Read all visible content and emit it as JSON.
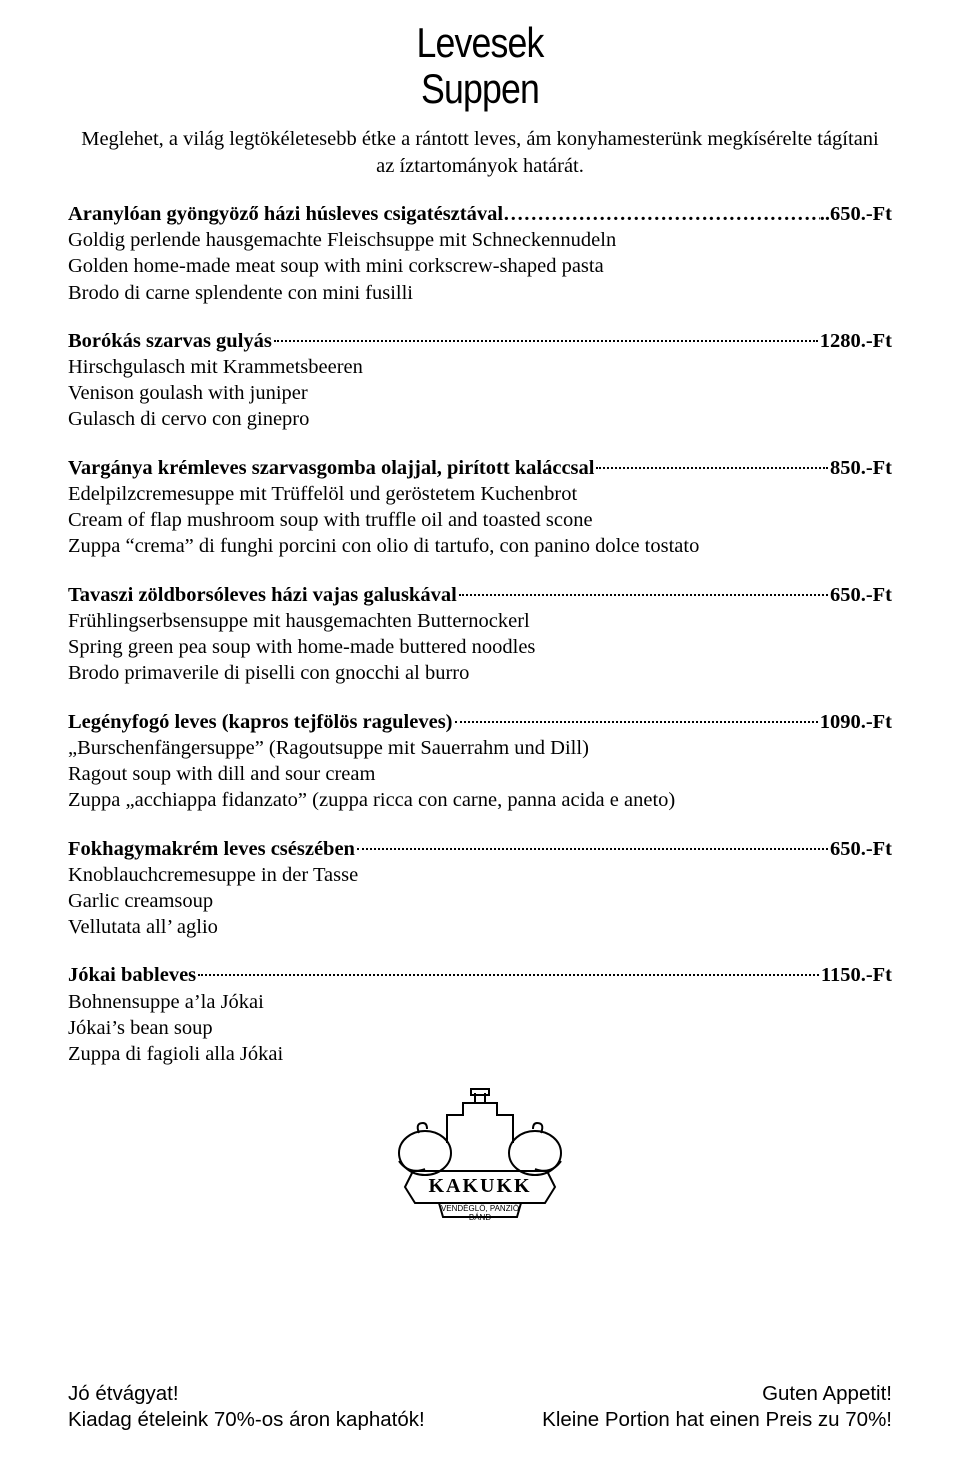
{
  "title": {
    "line1": "Levesek",
    "line2": "Suppen"
  },
  "intro": {
    "line1": "Meglehet, a világ legtökéletesebb étke a rántott leves, ám konyhamesterünk megkísérelte tágítani",
    "line2": "az íztartományok határát."
  },
  "items": [
    {
      "name": "Aranylóan gyöngyöző házi húsleves csigatésztával",
      "leader_style": "dashes",
      "price": "..650.-Ft",
      "descs": [
        "Goldig perlende hausgemachte  Fleischsuppe mit Schneckennudeln",
        "Golden home-made meat soup with mini corkscrew-shaped pasta",
        "Brodo di carne splendente con mini fusilli"
      ]
    },
    {
      "name": "Borókás szarvas gulyás",
      "leader_style": "dots",
      "price": "1280.-Ft",
      "descs": [
        "Hirschgulasch mit Krammetsbeeren",
        "Venison goulash with juniper",
        "Gulasch di cervo con ginepro"
      ]
    },
    {
      "name": "Vargánya krémleves szarvasgomba olajjal, pirított kaláccsal",
      "leader_style": "dots",
      "price": "850.-Ft",
      "descs": [
        "Edelpilzcremesuppe mit Trüffelöl und geröstetem Kuchenbrot",
        "Cream of flap mushroom soup with truffle oil and toasted scone",
        "Zuppa “crema” di funghi porcini con olio di tartufo, con panino dolce tostato"
      ]
    },
    {
      "name": "Tavaszi zöldborsóleves házi vajas galuskával",
      "leader_style": "dots",
      "price": "650.-Ft",
      "descs": [
        "Frühlingserbsensuppe mit hausgemachten Butternockerl",
        "Spring green pea soup with home-made buttered noodles",
        "Brodo primaverile di piselli con gnocchi al burro"
      ]
    },
    {
      "name": "Legényfogó leves (kapros tejfölös raguleves)",
      "leader_style": "dots",
      "price": "1090.-Ft",
      "descs": [
        "„Burschenfängersuppe” (Ragoutsuppe mit Sauerrahm und Dill)",
        "Ragout soup with dill and sour cream",
        "Zuppa „acchiappa fidanzato” (zuppa ricca con carne, panna acida e aneto)"
      ]
    },
    {
      "name": "Fokhagymakrém leves csészében",
      "leader_style": "dots",
      "price": "650.-Ft",
      "descs": [
        "Knoblauchcremesuppe in der Tasse",
        "Garlic creamsoup",
        "Vellutata all’ aglio"
      ]
    },
    {
      "name": "Jókai bableves",
      "leader_style": "dots",
      "price": "1150.-Ft",
      "descs": [
        "Bohnensuppe a’la Jókai",
        "Jókai’s bean soup",
        "Zuppa di fagioli alla Jókai"
      ]
    }
  ],
  "logo": {
    "banner": "KAKUKK",
    "sub": "VENDÉGLŐ, PANZIÓ",
    "sub2": "BÁND"
  },
  "footer": {
    "left1": "Jó étvágyat!",
    "left2": "Kiadag ételeink 70%-os áron kaphatók!",
    "right1": "Guten Appetit!",
    "right2": "Kleine Portion hat einen Preis zu 70%!"
  },
  "dashes_fill": "………………………………………………………"
}
